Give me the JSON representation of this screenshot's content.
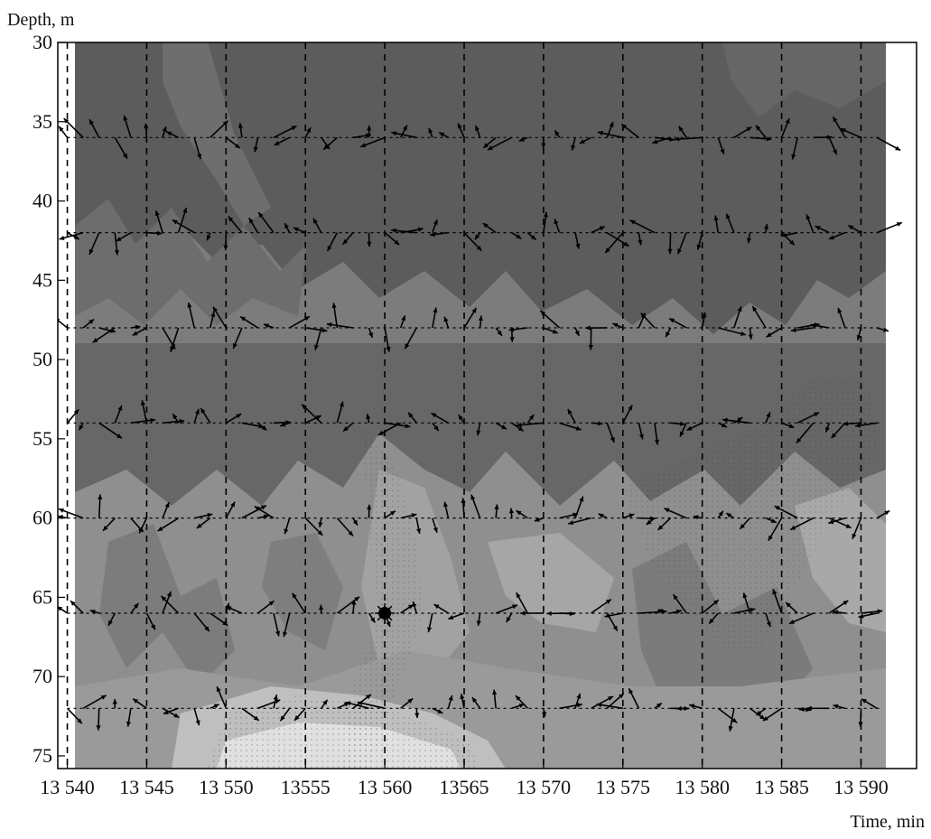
{
  "chart_data": {
    "type": "quiver",
    "xlabel": "Time, min",
    "ylabel": "Depth, m",
    "xlim": [
      13539.4,
      13593.5
    ],
    "ylim": [
      75.8,
      30
    ],
    "y_inverted": true,
    "xticks": [
      13540,
      13545,
      13550,
      13555,
      13560,
      13565,
      13570,
      13575,
      13580,
      13585,
      13590
    ],
    "xtick_labels": [
      "13 540",
      "13 545",
      "13 550",
      "13555",
      "13 560",
      "13565",
      "13 570",
      "13 575",
      "13 580",
      "13 585",
      "13 590"
    ],
    "yticks": [
      30,
      35,
      40,
      45,
      50,
      55,
      60,
      65,
      70,
      75
    ],
    "ytick_labels": [
      "30",
      "35",
      "40",
      "45",
      "50",
      "55",
      "60",
      "65",
      "70",
      "75"
    ],
    "vertical_dashed_lines_x": [
      13540,
      13545,
      13550,
      13555,
      13560,
      13565,
      13570,
      13575,
      13580,
      13585,
      13590
    ],
    "background": "grayscale filled contour field, darker above ~58 m, lighter below",
    "vector_rows_depth": [
      36,
      42,
      48,
      54,
      60,
      66,
      72
    ],
    "vector_x_range": [
      13540,
      13591
    ],
    "vector_spacing_min": 1,
    "highlight_point": {
      "x": 13560,
      "y": 66
    },
    "colors": {
      "dark": "#5a5a5a",
      "mid": "#7a7a7a",
      "light": "#a5a5a5",
      "lightest": "#d2d2d2",
      "arrow": "#000000"
    }
  }
}
